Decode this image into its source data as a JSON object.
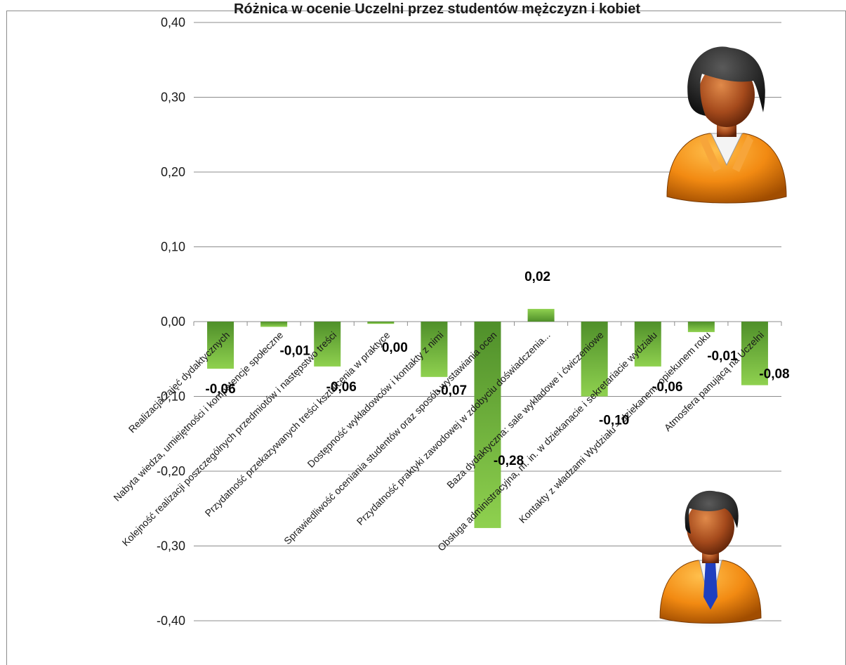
{
  "chart_data": {
    "type": "bar",
    "title": "Różnica w ocenie Uczelni przez studentów mężczyzn i kobiet",
    "xlabel": "",
    "ylabel": "",
    "ylim": [
      -0.4,
      0.4
    ],
    "yticks": [
      0.4,
      0.3,
      0.2,
      0.1,
      0.0,
      -0.1,
      -0.2,
      -0.3,
      -0.4
    ],
    "ytick_labels": [
      "0,40",
      "0,30",
      "0,20",
      "0,10",
      "0,00",
      "-0,10",
      "-0,20",
      "-0,30",
      "-0,40"
    ],
    "grid": true,
    "legend": "none",
    "bar_color": "#7cc142",
    "bar_color_dark": "#4f8f2a",
    "categories": [
      "Realizacja zajęć dydaktycznych",
      "Nabyta wiedza, umiejętności i kompetencje społeczne",
      "Kolejność realizacji poszczególnych przedmiotów i następstwo treści",
      "Przydatność przekazywanych treści kształcenia w praktyce",
      "Dostępność wykładowców i kontakty z nimi",
      "Sprawiedliwość oceniania studentów oraz sposób wystawiania ocen",
      "Przydatność praktyki zawodowej w zdobyciu doświadczenia...",
      "Baza dydaktyczna: sale wykładowe i ćwiczeniowe",
      "Obsługa administracyjna, m. in. w dziekanacie i sekretariacie wydziału",
      "Kontakty z władzami Wydziału – dziekanem, opiekunem roku",
      "Atmosfera panującą na Uczelni"
    ],
    "values": [
      -0.063,
      -0.007,
      -0.06,
      -0.003,
      -0.074,
      -0.276,
      0.017,
      -0.1,
      -0.06,
      -0.014,
      -0.085
    ],
    "data_labels": [
      "-0,06",
      "-0,01",
      "-0,06",
      "0,00",
      "-0,07",
      "-0,28",
      "0,02",
      "-0,10",
      "-0,06",
      "-0,01",
      "-0,08"
    ]
  },
  "icons": {
    "top": "female-user-icon",
    "bottom": "male-user-icon"
  }
}
